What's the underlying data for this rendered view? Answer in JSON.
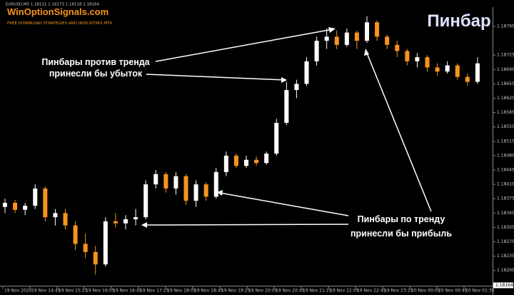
{
  "chart_data": {
    "type": "candlestick",
    "header": "EURUSD,M5  1.18131 1.18173 1.18118 1.18164",
    "logo": "WinOptionSignals.com",
    "logo_subtitle": "FREE DOWNLOAD STRATEGIES AND INDICATORS MT4",
    "title": "Пинбар",
    "annotations": [
      {
        "lines": [
          "Пинбары против тренда",
          "принесли бы убыток"
        ]
      },
      {
        "lines": [
          "Пинбары по тренду",
          "принесли бы прибыль"
        ]
      }
    ],
    "up_color": "#ffffff",
    "down_color": "#f7931e",
    "ylim": [
      1.18163,
      1.18842
    ],
    "yticks": [
      {
        "value": 1.182,
        "label": "1.18200"
      },
      1.18235,
      {
        "value": 1.1827,
        "label": "1.18270"
      },
      1.18305,
      {
        "value": 1.1834,
        "label": "1.18340"
      },
      1.18375,
      {
        "value": 1.1841,
        "label": "1.18410"
      },
      1.18445,
      {
        "value": 1.1848,
        "label": "1.18480"
      },
      1.18515,
      {
        "value": 1.1855,
        "label": "1.18550"
      },
      1.18585,
      {
        "value": 1.1862,
        "label": "1.18620"
      },
      1.18655,
      {
        "value": 1.1869,
        "label": "1.18690"
      },
      1.18725,
      1.18795
    ],
    "last_price": {
      "value": 1.18164,
      "label": "1.18164"
    },
    "time_labels": [
      "19 Nov 2020",
      "19 Nov 14:45",
      "19 Nov 15:25",
      "19 Nov 16:05",
      "19 Nov 16:45",
      "19 Nov 17:25",
      "19 Nov 18:05",
      "19 Nov 18:45",
      "19 Nov 19:25",
      "19 Nov 20:05",
      "19 Nov 20:45",
      "19 Nov 21:25",
      "19 Nov 22:05",
      "19 Nov 22:45",
      "19 Nov 23:25",
      "20 Nov 00:05",
      "20 Nov 00:45",
      "20 Nov 01:35"
    ],
    "open": [
      1.18355,
      1.18365,
      1.18348,
      1.18358,
      1.184,
      1.1833,
      1.1834,
      1.1831,
      1.18265,
      1.18245,
      1.18215,
      1.1832,
      1.18315,
      1.18325,
      1.1833,
      1.1841,
      1.18435,
      1.184,
      1.1843,
      1.1837,
      1.1841,
      1.1838,
      1.1844,
      1.1848,
      1.18455,
      1.1847,
      1.18462,
      1.18485,
      1.1856,
      1.1864,
      1.18655,
      1.1871,
      1.1876,
      1.1877,
      1.1875,
      1.1878,
      1.1876,
      1.18805,
      1.1877,
      1.1875,
      1.18735,
      1.1871,
      1.1872,
      1.18695,
      1.18685,
      1.187,
      1.18672,
      1.1866
    ],
    "high": [
      1.18375,
      1.18372,
      1.18365,
      1.1841,
      1.18405,
      1.1835,
      1.1835,
      1.1832,
      1.1829,
      1.1826,
      1.1833,
      1.1834,
      1.18335,
      1.1835,
      1.1842,
      1.18445,
      1.1844,
      1.1844,
      1.18435,
      1.1842,
      1.18415,
      1.1845,
      1.1849,
      1.18485,
      1.1848,
      1.18478,
      1.1849,
      1.1857,
      1.1866,
      1.18665,
      1.1872,
      1.1877,
      1.1879,
      1.18785,
      1.1879,
      1.18785,
      1.1882,
      1.1881,
      1.18775,
      1.1876,
      1.1874,
      1.1873,
      1.18725,
      1.18705,
      1.1871,
      1.18705,
      1.1868,
      1.1872
    ],
    "low": [
      1.1834,
      1.1834,
      1.18335,
      1.1835,
      1.1832,
      1.1831,
      1.183,
      1.1825,
      1.1823,
      1.1819,
      1.1821,
      1.18305,
      1.183,
      1.1831,
      1.18325,
      1.184,
      1.1839,
      1.18385,
      1.1836,
      1.18355,
      1.1837,
      1.18375,
      1.1843,
      1.1845,
      1.1845,
      1.18455,
      1.18458,
      1.1848,
      1.18555,
      1.1862,
      1.1865,
      1.187,
      1.1874,
      1.1874,
      1.18745,
      1.1874,
      1.18755,
      1.1876,
      1.1874,
      1.1872,
      1.187,
      1.18695,
      1.18685,
      1.18675,
      1.1868,
      1.18665,
      1.1865,
      1.18655
    ],
    "close": [
      1.18365,
      1.18348,
      1.18358,
      1.184,
      1.1833,
      1.1834,
      1.1831,
      1.18265,
      1.18245,
      1.18215,
      1.1832,
      1.18315,
      1.18325,
      1.1833,
      1.1841,
      1.18435,
      1.184,
      1.1843,
      1.1837,
      1.1841,
      1.1838,
      1.1844,
      1.1848,
      1.18455,
      1.1847,
      1.18462,
      1.18485,
      1.1856,
      1.1864,
      1.18655,
      1.1871,
      1.1876,
      1.1877,
      1.1875,
      1.1878,
      1.1876,
      1.18805,
      1.1877,
      1.1875,
      1.18735,
      1.1871,
      1.1872,
      1.18695,
      1.18685,
      1.187,
      1.18672,
      1.1866,
      1.18705
    ]
  }
}
